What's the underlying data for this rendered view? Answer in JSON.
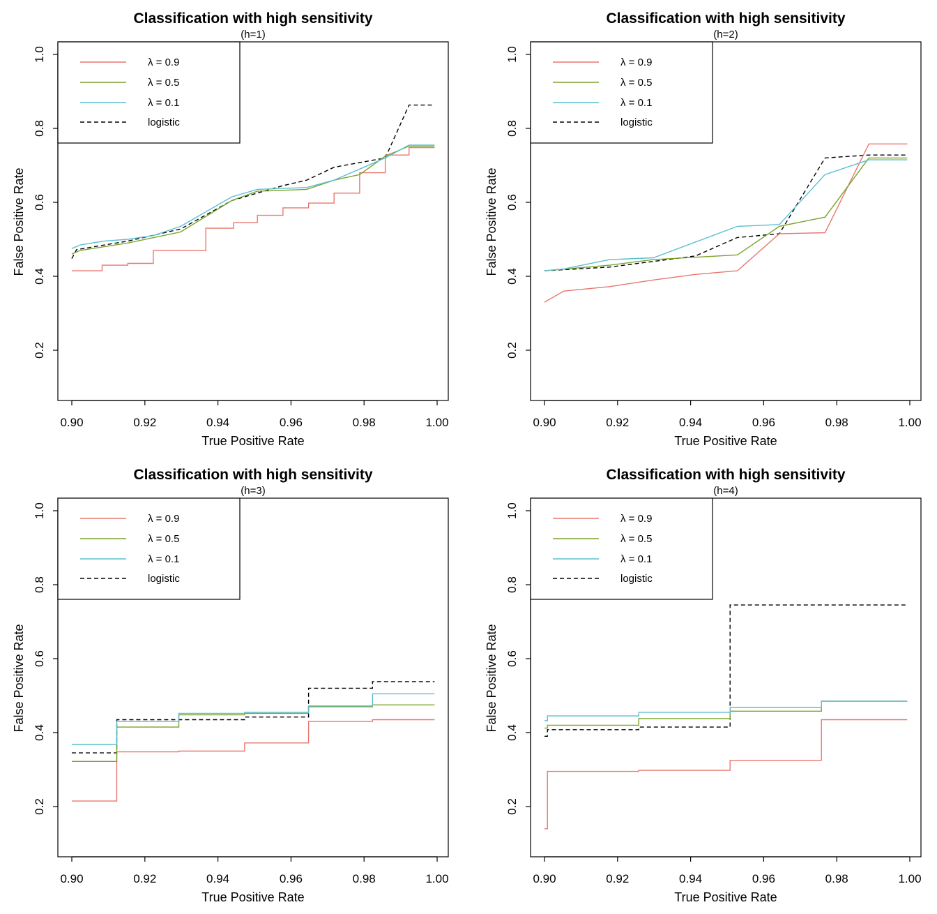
{
  "colors": {
    "lambda_09": "#E8776F",
    "lambda_05": "#7AA32A",
    "lambda_01": "#5BBFD0",
    "logistic": "#000000"
  },
  "chart_data": [
    {
      "type": "line",
      "title": "Classification with high sensitivity",
      "subtitle": "(h=1)",
      "xlabel": "True Positive Rate",
      "ylabel": "False Positive Rate",
      "xlim": [
        0.9,
        1.0
      ],
      "ylim": [
        0.1,
        1.0
      ],
      "xticks": [
        "0.90",
        "0.92",
        "0.94",
        "0.96",
        "0.98",
        "1.00"
      ],
      "yticks": [
        "0.2",
        "0.4",
        "0.6",
        "0.8",
        "1.0"
      ],
      "legend_position": "top-left",
      "series": [
        {
          "name": "λ = 0.9",
          "style": "solid",
          "color_key": "lambda_09",
          "x": [
            0.9,
            0.9,
            0.9083,
            0.9083,
            0.9153,
            0.9153,
            0.9223,
            0.9223,
            0.9367,
            0.9367,
            0.9443,
            0.9443,
            0.9508,
            0.9508,
            0.9578,
            0.9578,
            0.9648,
            0.9648,
            0.9718,
            0.9718,
            0.9788,
            0.9788,
            0.9858,
            0.9858,
            0.9923,
            0.9923,
            0.9993
          ],
          "y": [
            0.415,
            0.415,
            0.415,
            0.43,
            0.43,
            0.435,
            0.435,
            0.47,
            0.47,
            0.53,
            0.53,
            0.545,
            0.545,
            0.565,
            0.565,
            0.585,
            0.585,
            0.598,
            0.598,
            0.625,
            0.625,
            0.68,
            0.68,
            0.728,
            0.728,
            0.748,
            0.748
          ]
        },
        {
          "name": "λ = 0.5",
          "style": "solid",
          "color_key": "lambda_05",
          "x": [
            0.9,
            0.9,
            0.9023,
            0.9023,
            0.9153,
            0.9153,
            0.9298,
            0.9298,
            0.9438,
            0.9438,
            0.9508,
            0.9508,
            0.9643,
            0.9643,
            0.9718,
            0.9718,
            0.9788,
            0.9788,
            0.9858,
            0.9858,
            0.9923,
            0.9923,
            0.9993
          ],
          "y": [
            0.46,
            0.46,
            0.47,
            0.47,
            0.49,
            0.49,
            0.52,
            0.52,
            0.605,
            0.605,
            0.63,
            0.63,
            0.635,
            0.635,
            0.66,
            0.66,
            0.675,
            0.675,
            0.725,
            0.725,
            0.752,
            0.752,
            0.752
          ]
        },
        {
          "name": "λ = 0.1",
          "style": "solid",
          "color_key": "lambda_01",
          "x": [
            0.9,
            0.9,
            0.9023,
            0.9023,
            0.9088,
            0.9088,
            0.9153,
            0.9153,
            0.9223,
            0.9223,
            0.9298,
            0.9298,
            0.9438,
            0.9438,
            0.9508,
            0.9508,
            0.9643,
            0.9643,
            0.9718,
            0.9718,
            0.9788,
            0.9788,
            0.9858,
            0.9858,
            0.9923,
            0.9923,
            0.9993
          ],
          "y": [
            0.475,
            0.475,
            0.485,
            0.485,
            0.495,
            0.495,
            0.5,
            0.5,
            0.51,
            0.51,
            0.535,
            0.535,
            0.615,
            0.615,
            0.635,
            0.635,
            0.64,
            0.64,
            0.66,
            0.66,
            0.69,
            0.69,
            0.72,
            0.72,
            0.755,
            0.755,
            0.755
          ]
        },
        {
          "name": "logistic",
          "style": "dashed",
          "color_key": "logistic",
          "x": [
            0.9,
            0.9,
            0.9013,
            0.9013,
            0.9153,
            0.9153,
            0.9298,
            0.9298,
            0.9438,
            0.9438,
            0.9578,
            0.9578,
            0.9643,
            0.9643,
            0.9718,
            0.9718,
            0.9858,
            0.9858,
            0.9923,
            0.9923,
            0.9993
          ],
          "y": [
            0.448,
            0.448,
            0.472,
            0.472,
            0.495,
            0.495,
            0.528,
            0.528,
            0.605,
            0.605,
            0.645,
            0.645,
            0.66,
            0.66,
            0.695,
            0.695,
            0.72,
            0.72,
            0.863,
            0.863,
            0.863
          ]
        }
      ]
    },
    {
      "type": "line",
      "title": "Classification with high sensitivity",
      "subtitle": "(h=2)",
      "xlabel": "True Positive Rate",
      "ylabel": "False Positive Rate",
      "xlim": [
        0.9,
        1.0
      ],
      "ylim": [
        0.1,
        1.0
      ],
      "xticks": [
        "0.90",
        "0.92",
        "0.94",
        "0.96",
        "0.98",
        "1.00"
      ],
      "yticks": [
        "0.2",
        "0.4",
        "0.6",
        "0.8",
        "1.0"
      ],
      "legend_position": "top-left",
      "series": [
        {
          "name": "λ = 0.9",
          "style": "solid",
          "color_key": "lambda_09",
          "x": [
            0.9,
            0.9,
            0.9053,
            0.9053,
            0.9178,
            0.9178,
            0.9298,
            0.9298,
            0.9413,
            0.9413,
            0.9528,
            0.9528,
            0.9643,
            0.9643,
            0.9768,
            0.9768,
            0.9888,
            0.9888,
            0.9993
          ],
          "y": [
            0.33,
            0.33,
            0.36,
            0.36,
            0.372,
            0.372,
            0.39,
            0.39,
            0.405,
            0.405,
            0.415,
            0.415,
            0.515,
            0.515,
            0.518,
            0.518,
            0.758,
            0.758,
            0.758
          ]
        },
        {
          "name": "λ = 0.5",
          "style": "solid",
          "color_key": "lambda_05",
          "x": [
            0.9,
            0.9,
            0.9178,
            0.9178,
            0.9298,
            0.9298,
            0.9528,
            0.9528,
            0.9643,
            0.9643,
            0.9768,
            0.9768,
            0.9888,
            0.9888,
            0.9993
          ],
          "y": [
            0.415,
            0.415,
            0.43,
            0.43,
            0.445,
            0.445,
            0.458,
            0.458,
            0.535,
            0.535,
            0.56,
            0.56,
            0.72,
            0.72,
            0.72
          ]
        },
        {
          "name": "λ = 0.1",
          "style": "solid",
          "color_key": "lambda_01",
          "x": [
            0.9,
            0.9,
            0.9053,
            0.9053,
            0.9178,
            0.9178,
            0.9298,
            0.9298,
            0.9528,
            0.9528,
            0.9643,
            0.9643,
            0.9768,
            0.9768,
            0.9888,
            0.9888,
            0.9993
          ],
          "y": [
            0.415,
            0.415,
            0.42,
            0.42,
            0.445,
            0.445,
            0.45,
            0.45,
            0.535,
            0.535,
            0.54,
            0.54,
            0.675,
            0.675,
            0.715,
            0.715,
            0.715
          ]
        },
        {
          "name": "logistic",
          "style": "dashed",
          "color_key": "logistic",
          "x": [
            0.9,
            0.9,
            0.9178,
            0.9178,
            0.9413,
            0.9413,
            0.9528,
            0.9528,
            0.9643,
            0.9643,
            0.9768,
            0.9768,
            0.9888,
            0.9888,
            0.9993
          ],
          "y": [
            0.415,
            0.415,
            0.425,
            0.425,
            0.455,
            0.455,
            0.505,
            0.505,
            0.515,
            0.515,
            0.72,
            0.72,
            0.728,
            0.728,
            0.728
          ]
        }
      ]
    },
    {
      "type": "line",
      "title": "Classification with high sensitivity",
      "subtitle": "(h=3)",
      "xlabel": "True Positive Rate",
      "ylabel": "False Positive Rate",
      "xlim": [
        0.9,
        1.0
      ],
      "ylim": [
        0.1,
        1.0
      ],
      "xticks": [
        "0.90",
        "0.92",
        "0.94",
        "0.96",
        "0.98",
        "1.00"
      ],
      "yticks": [
        "0.2",
        "0.4",
        "0.6",
        "0.8",
        "1.0"
      ],
      "legend_position": "top-left",
      "series": [
        {
          "name": "λ = 0.9",
          "style": "solid",
          "color_key": "lambda_09",
          "x": [
            0.9,
            0.9,
            0.9123,
            0.9123,
            0.9293,
            0.9293,
            0.9473,
            0.9473,
            0.9648,
            0.9648,
            0.9823,
            0.9823,
            0.9993
          ],
          "y": [
            0.215,
            0.215,
            0.215,
            0.348,
            0.348,
            0.35,
            0.35,
            0.372,
            0.372,
            0.43,
            0.43,
            0.435,
            0.435
          ]
        },
        {
          "name": "λ = 0.5",
          "style": "solid",
          "color_key": "lambda_05",
          "x": [
            0.9,
            0.9,
            0.9123,
            0.9123,
            0.9293,
            0.9293,
            0.9473,
            0.9473,
            0.9648,
            0.9648,
            0.9823,
            0.9823,
            0.9993
          ],
          "y": [
            0.322,
            0.322,
            0.322,
            0.415,
            0.415,
            0.448,
            0.448,
            0.452,
            0.452,
            0.47,
            0.47,
            0.475,
            0.475
          ]
        },
        {
          "name": "λ = 0.1",
          "style": "solid",
          "color_key": "lambda_01",
          "x": [
            0.9,
            0.9,
            0.9123,
            0.9123,
            0.9293,
            0.9293,
            0.9473,
            0.9473,
            0.9648,
            0.9648,
            0.9823,
            0.9823,
            0.9993
          ],
          "y": [
            0.368,
            0.368,
            0.368,
            0.43,
            0.43,
            0.452,
            0.452,
            0.455,
            0.455,
            0.472,
            0.472,
            0.505,
            0.505
          ]
        },
        {
          "name": "logistic",
          "style": "dashed",
          "color_key": "logistic",
          "x": [
            0.9,
            0.9,
            0.9123,
            0.9123,
            0.9293,
            0.9293,
            0.9473,
            0.9473,
            0.9648,
            0.9648,
            0.9823,
            0.9823,
            0.9993
          ],
          "y": [
            0.345,
            0.345,
            0.345,
            0.435,
            0.435,
            0.435,
            0.435,
            0.442,
            0.442,
            0.52,
            0.52,
            0.538,
            0.538
          ]
        }
      ]
    },
    {
      "type": "line",
      "title": "Classification with high sensitivity",
      "subtitle": "(h=4)",
      "xlabel": "True Positive Rate",
      "ylabel": "False Positive Rate",
      "xlim": [
        0.9,
        1.0
      ],
      "ylim": [
        0.1,
        1.0
      ],
      "xticks": [
        "0.90",
        "0.92",
        "0.94",
        "0.96",
        "0.98",
        "1.00"
      ],
      "yticks": [
        "0.2",
        "0.4",
        "0.6",
        "0.8",
        "1.0"
      ],
      "legend_position": "top-left",
      "series": [
        {
          "name": "λ = 0.9",
          "style": "solid",
          "color_key": "lambda_09",
          "x": [
            0.9,
            0.9,
            0.9008,
            0.9008,
            0.9258,
            0.9258,
            0.9508,
            0.9508,
            0.9758,
            0.9758,
            0.9993
          ],
          "y": [
            0.14,
            0.14,
            0.14,
            0.295,
            0.295,
            0.298,
            0.298,
            0.325,
            0.325,
            0.435,
            0.435
          ]
        },
        {
          "name": "λ = 0.5",
          "style": "solid",
          "color_key": "lambda_05",
          "x": [
            0.9,
            0.9,
            0.9008,
            0.9008,
            0.9258,
            0.9258,
            0.9508,
            0.9508,
            0.9758,
            0.9758,
            0.9993
          ],
          "y": [
            0.412,
            0.412,
            0.412,
            0.42,
            0.42,
            0.438,
            0.438,
            0.458,
            0.458,
            0.485,
            0.485
          ]
        },
        {
          "name": "λ = 0.1",
          "style": "solid",
          "color_key": "lambda_01",
          "x": [
            0.9,
            0.9,
            0.9008,
            0.9008,
            0.9258,
            0.9258,
            0.9508,
            0.9508,
            0.9758,
            0.9758,
            0.9993
          ],
          "y": [
            0.432,
            0.432,
            0.432,
            0.445,
            0.445,
            0.455,
            0.455,
            0.468,
            0.468,
            0.485,
            0.485
          ]
        },
        {
          "name": "logistic",
          "style": "dashed",
          "color_key": "logistic",
          "x": [
            0.9,
            0.9,
            0.9008,
            0.9008,
            0.9258,
            0.9258,
            0.9508,
            0.9508,
            0.9993
          ],
          "y": [
            0.39,
            0.39,
            0.39,
            0.408,
            0.408,
            0.415,
            0.415,
            0.745,
            0.745
          ]
        }
      ]
    }
  ]
}
